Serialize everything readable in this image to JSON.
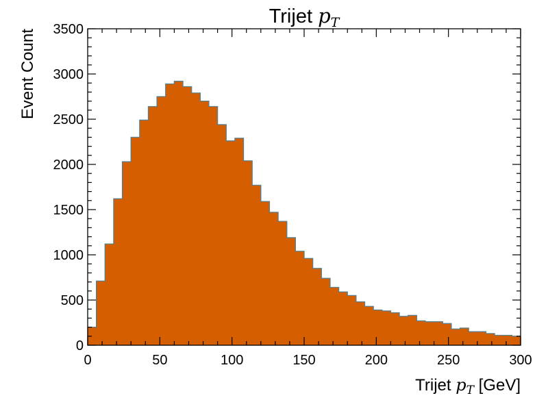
{
  "chart_data": {
    "type": "bar",
    "title": "Trijet",
    "title_math": "p",
    "title_math_sub": "T",
    "xlabel": "Trijet",
    "xlabel_math": "p",
    "xlabel_math_sub": "T",
    "xlabel_unit": "[GeV]",
    "ylabel": "Event Count",
    "xlim": [
      0,
      300
    ],
    "ylim": [
      0,
      3500
    ],
    "x_ticks": [
      0,
      50,
      100,
      150,
      200,
      250,
      300
    ],
    "y_ticks": [
      0,
      500,
      1000,
      1500,
      2000,
      2500,
      3000,
      3500
    ],
    "bin_width": 6,
    "bin_edges_start": 0,
    "values": [
      200,
      710,
      1120,
      1620,
      2030,
      2300,
      2490,
      2640,
      2750,
      2890,
      2920,
      2860,
      2790,
      2700,
      2640,
      2440,
      2260,
      2290,
      2040,
      1770,
      1590,
      1470,
      1370,
      1190,
      1040,
      960,
      850,
      740,
      640,
      590,
      550,
      480,
      430,
      390,
      380,
      360,
      320,
      330,
      270,
      260,
      260,
      240,
      180,
      190,
      150,
      150,
      130,
      110,
      110,
      100
    ],
    "fill_color": "#d55e00",
    "edge_color": "#5a7f8c",
    "grid": false,
    "legend": false
  }
}
